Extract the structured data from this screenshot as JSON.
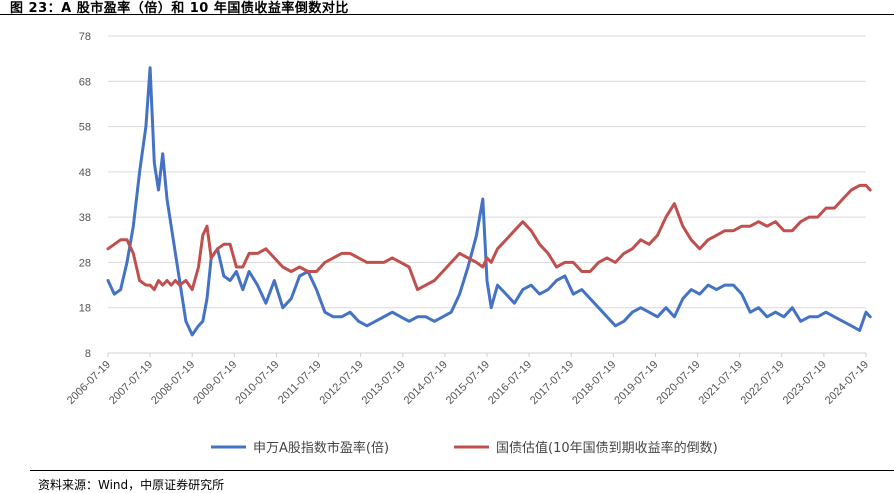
{
  "figure": {
    "title": "图 23：A 股市盈率（倍）和 10 年国债收益率倒数对比",
    "source": "资料来源：Wind，中原证券研究所"
  },
  "chart_data": {
    "type": "line",
    "title": "图 23：A 股市盈率（倍）和 10 年国债收益率倒数对比",
    "xlabel": "",
    "ylabel": "",
    "ylim": [
      8,
      78
    ],
    "yticks": [
      8,
      18,
      28,
      38,
      48,
      58,
      68,
      78
    ],
    "x_tick_labels": [
      "2006-07-19",
      "2007-07-19",
      "2008-07-19",
      "2009-07-19",
      "2010-07-19",
      "2011-07-19",
      "2012-07-19",
      "2013-07-19",
      "2014-07-19",
      "2015-07-19",
      "2016-07-19",
      "2017-07-19",
      "2018-07-19",
      "2019-07-19",
      "2020-07-19",
      "2021-07-19",
      "2022-07-19",
      "2023-07-19",
      "2024-07-19"
    ],
    "grid": "horizontal",
    "legend_position": "bottom",
    "x": [
      2006.55,
      2006.7,
      2006.85,
      2007.0,
      2007.15,
      2007.3,
      2007.45,
      2007.55,
      2007.65,
      2007.75,
      2007.85,
      2007.95,
      2008.05,
      2008.15,
      2008.25,
      2008.4,
      2008.55,
      2008.7,
      2008.8,
      2008.9,
      2009.0,
      2009.15,
      2009.3,
      2009.45,
      2009.6,
      2009.75,
      2009.9,
      2010.1,
      2010.3,
      2010.5,
      2010.7,
      2010.9,
      2011.1,
      2011.3,
      2011.5,
      2011.7,
      2011.9,
      2012.1,
      2012.3,
      2012.5,
      2012.7,
      2012.9,
      2013.1,
      2013.3,
      2013.5,
      2013.7,
      2013.9,
      2014.1,
      2014.3,
      2014.5,
      2014.7,
      2014.9,
      2015.1,
      2015.3,
      2015.45,
      2015.55,
      2015.65,
      2015.8,
      2016.0,
      2016.2,
      2016.4,
      2016.6,
      2016.8,
      2017.0,
      2017.2,
      2017.4,
      2017.6,
      2017.8,
      2018.0,
      2018.2,
      2018.4,
      2018.6,
      2018.8,
      2019.0,
      2019.2,
      2019.4,
      2019.6,
      2019.8,
      2020.0,
      2020.2,
      2020.4,
      2020.6,
      2020.8,
      2021.0,
      2021.2,
      2021.4,
      2021.6,
      2021.8,
      2022.0,
      2022.2,
      2022.4,
      2022.6,
      2022.8,
      2023.0,
      2023.2,
      2023.4,
      2023.6,
      2023.8,
      2024.0,
      2024.2,
      2024.4,
      2024.55,
      2024.65
    ],
    "series": [
      {
        "name": "申万A股指数市盈率(倍)",
        "color": "#4472C4",
        "values": [
          24,
          21,
          22,
          28,
          36,
          48,
          58,
          71,
          50,
          44,
          52,
          42,
          36,
          30,
          24,
          15,
          12,
          14,
          15,
          20,
          29,
          31,
          25,
          24,
          26,
          22,
          26,
          23,
          19,
          24,
          18,
          20,
          25,
          26,
          22,
          17,
          16,
          16,
          17,
          15,
          14,
          15,
          16,
          17,
          16,
          15,
          16,
          16,
          15,
          16,
          17,
          21,
          27,
          34,
          42,
          24,
          18,
          23,
          21,
          19,
          22,
          23,
          21,
          22,
          24,
          25,
          21,
          22,
          20,
          18,
          16,
          14,
          15,
          17,
          18,
          17,
          16,
          18,
          16,
          20,
          22,
          21,
          23,
          22,
          23,
          23,
          21,
          17,
          18,
          16,
          17,
          16,
          18,
          15,
          16,
          16,
          17,
          16,
          15,
          14,
          13,
          17,
          16
        ]
      },
      {
        "name": "国债估值(10年国债到期收益率的倒数)",
        "color": "#C0504D",
        "values": [
          31,
          32,
          33,
          33,
          30,
          24,
          23,
          23,
          22,
          24,
          23,
          24,
          23,
          24,
          23,
          24,
          22,
          27,
          34,
          36,
          29,
          31,
          32,
          32,
          27,
          27,
          30,
          30,
          31,
          29,
          27,
          26,
          27,
          26,
          26,
          28,
          29,
          30,
          30,
          29,
          28,
          28,
          28,
          29,
          28,
          27,
          22,
          23,
          24,
          26,
          28,
          30,
          29,
          28,
          27,
          29,
          28,
          31,
          33,
          35,
          37,
          35,
          32,
          30,
          27,
          28,
          28,
          26,
          26,
          28,
          29,
          28,
          30,
          31,
          33,
          32,
          34,
          38,
          41,
          36,
          33,
          31,
          33,
          34,
          35,
          35,
          36,
          36,
          37,
          36,
          37,
          35,
          35,
          37,
          38,
          38,
          40,
          40,
          42,
          44,
          45,
          45,
          44
        ]
      }
    ]
  }
}
